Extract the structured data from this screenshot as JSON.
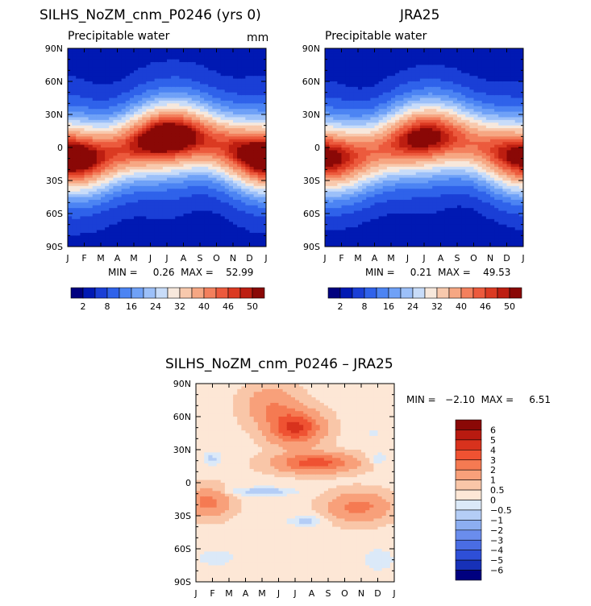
{
  "chart_data": [
    {
      "type": "heatmap",
      "title": "SILHS_NoZM_cnm_P0246 (yrs 0)",
      "subtitle": "Precipitable water",
      "units": "mm",
      "x_ticks": [
        "J",
        "F",
        "M",
        "A",
        "M",
        "J",
        "J",
        "A",
        "S",
        "O",
        "N",
        "D",
        "J"
      ],
      "y_ticks": [
        "90N",
        "60N",
        "30N",
        "0",
        "30S",
        "60S",
        "90S"
      ],
      "y_range": [
        -90,
        90
      ],
      "stats": "MIN =     0.26  MAX =    52.99",
      "min": 0.26,
      "max": 52.99,
      "colorbar_labels": [
        "2",
        "8",
        "16",
        "24",
        "32",
        "40",
        "46",
        "50"
      ],
      "colors": [
        "#00007f",
        "#0019b3",
        "#1a3fd6",
        "#2f62ea",
        "#4c84f3",
        "#6fa1f7",
        "#9cc0f9",
        "#c8dcf9",
        "#f7e8dc",
        "#f8c9ad",
        "#f6a783",
        "#f3805d",
        "#ec5a3d",
        "#db3a22",
        "#bd1e11",
        "#8a0806"
      ]
    },
    {
      "type": "heatmap",
      "title": "JRA25",
      "subtitle": "Precipitable water",
      "x_ticks": [
        "J",
        "F",
        "M",
        "A",
        "M",
        "J",
        "J",
        "A",
        "S",
        "O",
        "N",
        "D",
        "J"
      ],
      "y_ticks": [
        "90N",
        "60N",
        "30N",
        "0",
        "30S",
        "60S",
        "90S"
      ],
      "y_range": [
        -90,
        90
      ],
      "stats": "MIN =     0.21  MAX =    49.53",
      "min": 0.21,
      "max": 49.53,
      "colorbar_labels": [
        "2",
        "8",
        "16",
        "24",
        "32",
        "40",
        "46",
        "50"
      ],
      "colors": [
        "#00007f",
        "#0019b3",
        "#1a3fd6",
        "#2f62ea",
        "#4c84f3",
        "#6fa1f7",
        "#9cc0f9",
        "#c8dcf9",
        "#f7e8dc",
        "#f8c9ad",
        "#f6a783",
        "#f3805d",
        "#ec5a3d",
        "#db3a22",
        "#bd1e11",
        "#8a0806"
      ]
    },
    {
      "type": "heatmap",
      "title": "SILHS_NoZM_cnm_P0246 – JRA25",
      "x_ticks": [
        "J",
        "F",
        "M",
        "A",
        "M",
        "J",
        "J",
        "A",
        "S",
        "O",
        "N",
        "D",
        "J"
      ],
      "y_ticks": [
        "90N",
        "60N",
        "30N",
        "0",
        "30S",
        "60S",
        "90S"
      ],
      "y_range": [
        -90,
        90
      ],
      "stats": "MIN =   −2.10  MAX =     6.51",
      "min": -2.1,
      "max": 6.51,
      "colorbar_labels": [
        "6",
        "5",
        "4",
        "3",
        "2",
        "1",
        "0.5",
        "0",
        "−0.5",
        "−1",
        "−2",
        "−3",
        "−4",
        "−5",
        "−6"
      ],
      "colors": [
        "#8a0806",
        "#b81a10",
        "#d8321d",
        "#ef5232",
        "#f57a52",
        "#f8a07a",
        "#f9c6a8",
        "#fde7d6",
        "#dbe9f8",
        "#b4cdf6",
        "#8caef1",
        "#6a8ded",
        "#4a6de3",
        "#2e4fd7",
        "#1731b8",
        "#00007f"
      ]
    }
  ]
}
